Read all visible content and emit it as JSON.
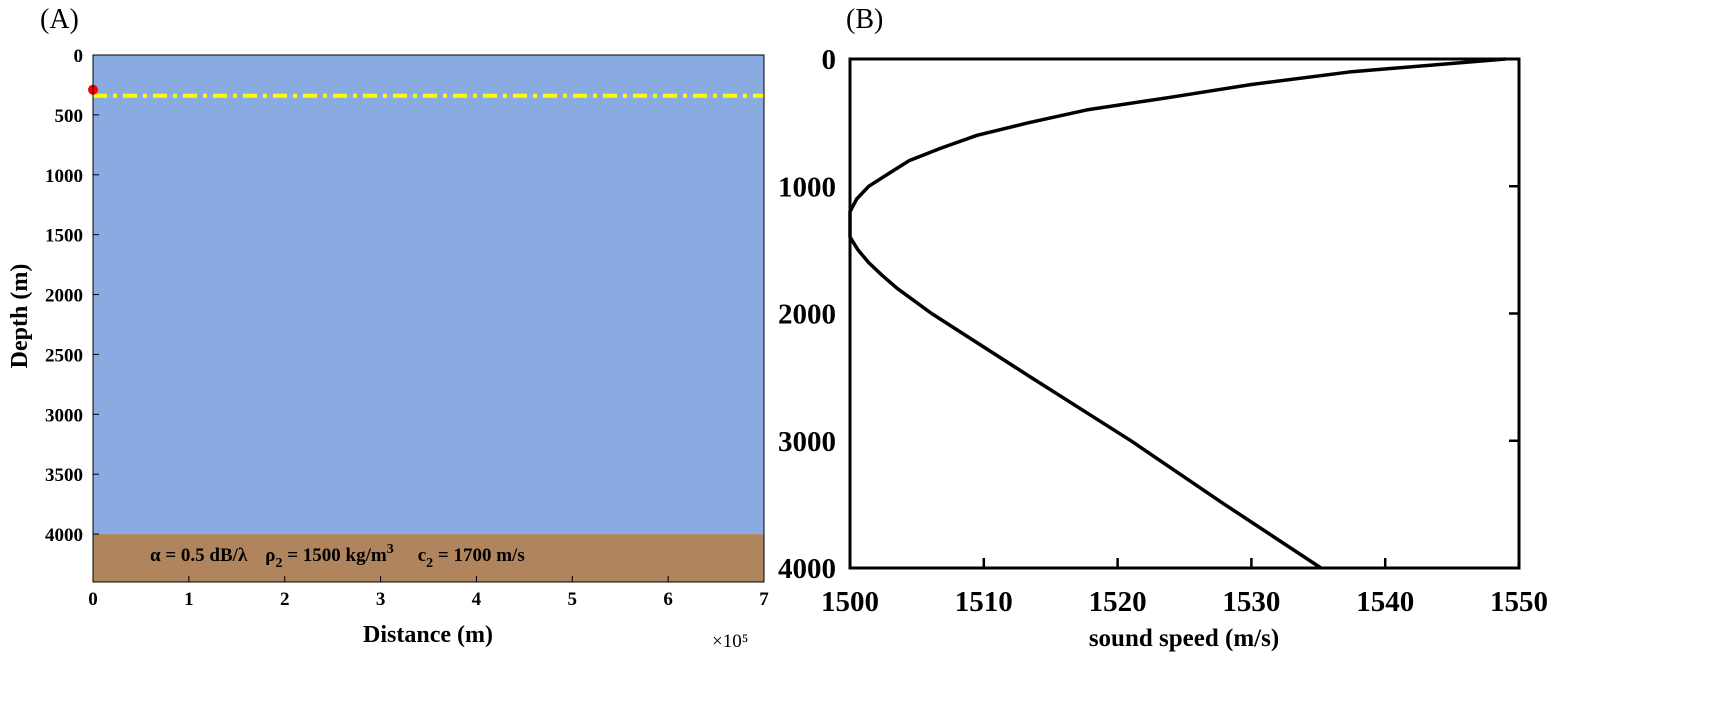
{
  "colors": {
    "water": "#89abe1",
    "seabed": "#b0845c",
    "source": "#ff0000",
    "receiver_line": "#ffff00",
    "profile_line": "#000000"
  },
  "chart_data": [
    {
      "panel": "(A)",
      "type": "area",
      "xlabel": "Distance (m)",
      "ylabel": "Depth (m)",
      "x_multiplier": "×10⁵",
      "xlim": [
        0,
        7
      ],
      "ylim": [
        0,
        4400
      ],
      "y_reversed": true,
      "xticks": [
        "0",
        "1",
        "2",
        "3",
        "4",
        "5",
        "6",
        "7"
      ],
      "yticks": [
        "0",
        "500",
        "1000",
        "1500",
        "2000",
        "2500",
        "3000",
        "3500",
        "4000"
      ],
      "regions": [
        {
          "name": "water",
          "depth_from": 0,
          "depth_to": 4000
        },
        {
          "name": "seabed",
          "depth_from": 4000,
          "depth_to": 4400
        }
      ],
      "source": {
        "x": 0,
        "depth": 290
      },
      "receiver_line": {
        "depth": 340,
        "style": "dash-dot"
      },
      "seabed_parameters": {
        "alpha": "α = 0.5 dB/λ",
        "rho": "ρ",
        "rho_sub": "2",
        "rho_value": " = 1500 kg/m",
        "rho_sup": "3",
        "c": "c",
        "c_sub": "2",
        "c_value": " = 1700 m/s"
      }
    },
    {
      "panel": "(B)",
      "type": "line",
      "xlabel": "sound speed (m/s)",
      "ylabel": "",
      "xlim": [
        1500,
        1550
      ],
      "ylim": [
        0,
        4000
      ],
      "y_reversed": true,
      "xticks": [
        "1500",
        "1510",
        "1520",
        "1530",
        "1540",
        "1550"
      ],
      "yticks": [
        "0",
        "1000",
        "2000",
        "3000",
        "4000"
      ],
      "series": [
        {
          "depth": [
            0,
            100,
            200,
            250,
            300,
            400,
            500,
            600,
            700,
            800,
            900,
            1000,
            1100,
            1200,
            1300,
            1400,
            1500,
            1600,
            1700,
            1800,
            2000,
            2500,
            3000,
            3500,
            4000
          ],
          "speed": [
            1549,
            1537.5,
            1530,
            1527,
            1524,
            1517.7,
            1513.4,
            1509.5,
            1506.8,
            1504.4,
            1502.9,
            1501.4,
            1500.5,
            1500.0,
            1500.0,
            1500.0,
            1500.6,
            1501.4,
            1502.4,
            1503.5,
            1506.1,
            1513.5,
            1521,
            1528,
            1535.2
          ]
        }
      ]
    }
  ]
}
